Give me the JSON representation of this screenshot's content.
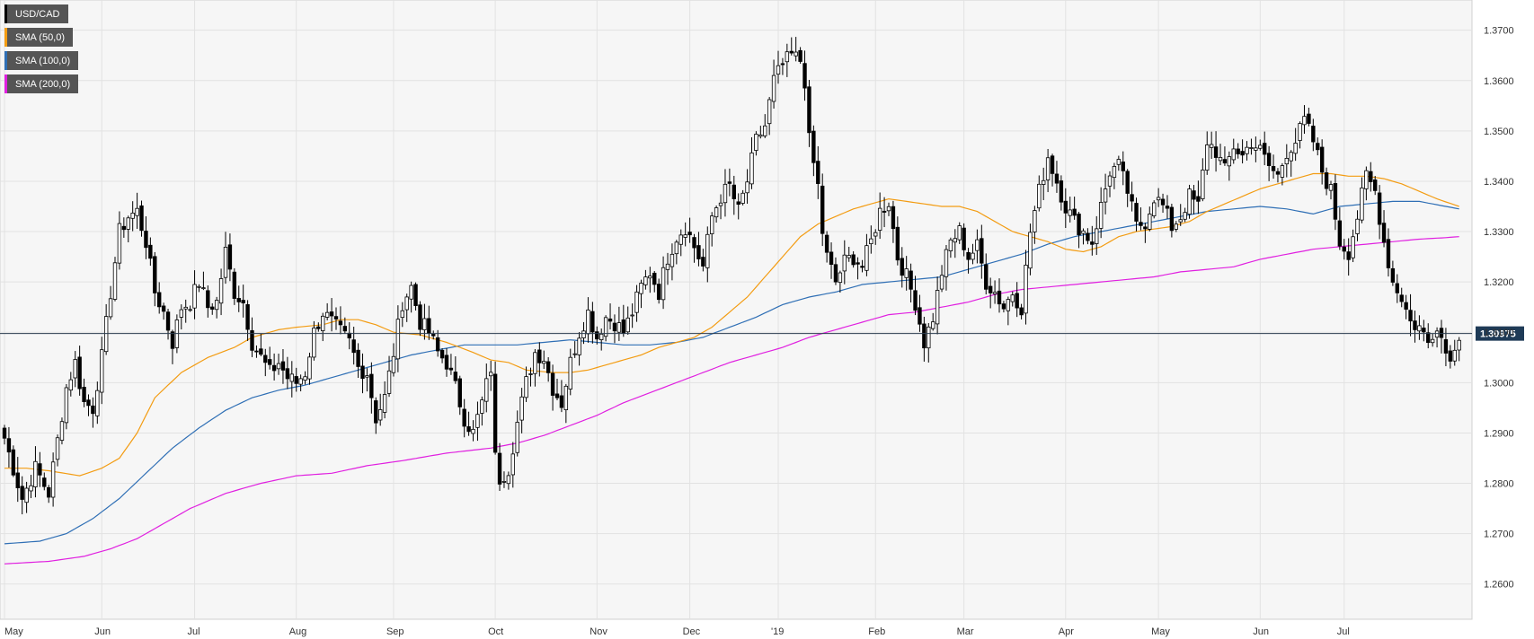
{
  "chart_data": {
    "type": "candlestick",
    "symbol": "USD/CAD",
    "current_price_label": "1.30975",
    "current_price": 1.30975,
    "ylim": [
      1.253,
      1.376
    ],
    "y_ticks": [
      "1.2600",
      "1.2700",
      "1.2800",
      "1.2900",
      "1.3000",
      "1.3100",
      "1.3200",
      "1.3300",
      "1.3400",
      "1.3500",
      "1.3600",
      "1.3700"
    ],
    "x_labels": [
      "May",
      "Jun",
      "Jul",
      "Aug",
      "Sep",
      "Oct",
      "Nov",
      "Dec",
      "'19",
      "Feb",
      "Mar",
      "Apr",
      "May",
      "Jun",
      "Jul"
    ],
    "x_label_bars": [
      0,
      22,
      43,
      66,
      88,
      111,
      134,
      155,
      175,
      197,
      217,
      240,
      261,
      284,
      303
    ],
    "grid": true,
    "legend_position": "top-left",
    "legend": [
      {
        "label": "USD/CAD",
        "color": "#000000"
      },
      {
        "label": "SMA (50,0)",
        "color": "#f39c12"
      },
      {
        "label": "SMA (100,0)",
        "color": "#2f6fb5"
      },
      {
        "label": "SMA (200,0)",
        "color": "#e020e0"
      }
    ],
    "colors": {
      "up": "#ffffff",
      "down": "#000000",
      "wick": "#000000",
      "price_line": "#2c3e50",
      "price_badge": "#1f3b57"
    },
    "close_path": [
      [
        0,
        1.289
      ],
      [
        4,
        1.277
      ],
      [
        7,
        1.283
      ],
      [
        10,
        1.278
      ],
      [
        14,
        1.299
      ],
      [
        16,
        1.304
      ],
      [
        18,
        1.296
      ],
      [
        20,
        1.295
      ],
      [
        22,
        1.305
      ],
      [
        24,
        1.318
      ],
      [
        26,
        1.33
      ],
      [
        28,
        1.333
      ],
      [
        30,
        1.334
      ],
      [
        32,
        1.328
      ],
      [
        34,
        1.318
      ],
      [
        36,
        1.314
      ],
      [
        38,
        1.308
      ],
      [
        40,
        1.315
      ],
      [
        42,
        1.316
      ],
      [
        44,
        1.32
      ],
      [
        46,
        1.315
      ],
      [
        48,
        1.316
      ],
      [
        50,
        1.326
      ],
      [
        52,
        1.318
      ],
      [
        54,
        1.316
      ],
      [
        56,
        1.308
      ],
      [
        58,
        1.305
      ],
      [
        60,
        1.302
      ],
      [
        62,
        1.304
      ],
      [
        64,
        1.301
      ],
      [
        66,
        1.3
      ],
      [
        68,
        1.302
      ],
      [
        70,
        1.31
      ],
      [
        72,
        1.314
      ],
      [
        74,
        1.312
      ],
      [
        76,
        1.31
      ],
      [
        78,
        1.308
      ],
      [
        80,
        1.303
      ],
      [
        82,
        1.302
      ],
      [
        84,
        1.293
      ],
      [
        86,
        1.297
      ],
      [
        88,
        1.306
      ],
      [
        90,
        1.316
      ],
      [
        92,
        1.319
      ],
      [
        94,
        1.312
      ],
      [
        96,
        1.31
      ],
      [
        98,
        1.306
      ],
      [
        100,
        1.304
      ],
      [
        102,
        1.299
      ],
      [
        104,
        1.293
      ],
      [
        106,
        1.29
      ],
      [
        108,
        1.296
      ],
      [
        110,
        1.303
      ],
      [
        111,
        1.285
      ],
      [
        112,
        1.281
      ],
      [
        114,
        1.283
      ],
      [
        116,
        1.292
      ],
      [
        118,
        1.3
      ],
      [
        120,
        1.306
      ],
      [
        122,
        1.305
      ],
      [
        124,
        1.299
      ],
      [
        126,
        1.296
      ],
      [
        128,
        1.304
      ],
      [
        130,
        1.31
      ],
      [
        132,
        1.314
      ],
      [
        134,
        1.309
      ],
      [
        136,
        1.313
      ],
      [
        138,
        1.312
      ],
      [
        140,
        1.31
      ],
      [
        142,
        1.314
      ],
      [
        144,
        1.319
      ],
      [
        146,
        1.322
      ],
      [
        148,
        1.318
      ],
      [
        150,
        1.325
      ],
      [
        152,
        1.329
      ],
      [
        154,
        1.331
      ],
      [
        156,
        1.327
      ],
      [
        158,
        1.323
      ],
      [
        160,
        1.333
      ],
      [
        162,
        1.337
      ],
      [
        164,
        1.339
      ],
      [
        166,
        1.334
      ],
      [
        168,
        1.34
      ],
      [
        170,
        1.348
      ],
      [
        172,
        1.351
      ],
      [
        174,
        1.36
      ],
      [
        176,
        1.363
      ],
      [
        178,
        1.365
      ],
      [
        180,
        1.364
      ],
      [
        181,
        1.36
      ],
      [
        182,
        1.348
      ],
      [
        184,
        1.339
      ],
      [
        185,
        1.33
      ],
      [
        186,
        1.325
      ],
      [
        188,
        1.32
      ],
      [
        190,
        1.324
      ],
      [
        192,
        1.325
      ],
      [
        194,
        1.323
      ],
      [
        196,
        1.328
      ],
      [
        198,
        1.334
      ],
      [
        200,
        1.336
      ],
      [
        202,
        1.325
      ],
      [
        204,
        1.321
      ],
      [
        206,
        1.316
      ],
      [
        208,
        1.308
      ],
      [
        210,
        1.313
      ],
      [
        212,
        1.322
      ],
      [
        214,
        1.328
      ],
      [
        216,
        1.33
      ],
      [
        218,
        1.325
      ],
      [
        220,
        1.327
      ],
      [
        222,
        1.32
      ],
      [
        224,
        1.318
      ],
      [
        226,
        1.315
      ],
      [
        228,
        1.318
      ],
      [
        230,
        1.315
      ],
      [
        232,
        1.33
      ],
      [
        234,
        1.338
      ],
      [
        236,
        1.345
      ],
      [
        238,
        1.34
      ],
      [
        240,
        1.335
      ],
      [
        242,
        1.332
      ],
      [
        244,
        1.33
      ],
      [
        246,
        1.328
      ],
      [
        248,
        1.335
      ],
      [
        250,
        1.342
      ],
      [
        252,
        1.343
      ],
      [
        254,
        1.338
      ],
      [
        256,
        1.331
      ],
      [
        258,
        1.332
      ],
      [
        260,
        1.337
      ],
      [
        262,
        1.335
      ],
      [
        264,
        1.331
      ],
      [
        266,
        1.333
      ],
      [
        268,
        1.337
      ],
      [
        270,
        1.335
      ],
      [
        272,
        1.348
      ],
      [
        274,
        1.346
      ],
      [
        276,
        1.342
      ],
      [
        278,
        1.347
      ],
      [
        280,
        1.345
      ],
      [
        282,
        1.348
      ],
      [
        284,
        1.346
      ],
      [
        286,
        1.343
      ],
      [
        288,
        1.341
      ],
      [
        290,
        1.346
      ],
      [
        292,
        1.348
      ],
      [
        294,
        1.352
      ],
      [
        296,
        1.348
      ],
      [
        298,
        1.342
      ],
      [
        300,
        1.338
      ],
      [
        302,
        1.328
      ],
      [
        304,
        1.326
      ],
      [
        306,
        1.333
      ],
      [
        308,
        1.341
      ],
      [
        310,
        1.338
      ],
      [
        312,
        1.328
      ],
      [
        314,
        1.32
      ],
      [
        316,
        1.317
      ],
      [
        318,
        1.312
      ],
      [
        320,
        1.311
      ],
      [
        322,
        1.308
      ],
      [
        324,
        1.312
      ],
      [
        326,
        1.306
      ],
      [
        328,
        1.306
      ],
      [
        329,
        1.3098
      ]
    ],
    "sma50_path": [
      [
        0,
        1.283
      ],
      [
        5,
        1.283
      ],
      [
        10,
        1.2825
      ],
      [
        17,
        1.2815
      ],
      [
        22,
        1.283
      ],
      [
        26,
        1.285
      ],
      [
        30,
        1.29
      ],
      [
        34,
        1.297
      ],
      [
        40,
        1.302
      ],
      [
        46,
        1.305
      ],
      [
        52,
        1.307
      ],
      [
        56,
        1.309
      ],
      [
        62,
        1.3105
      ],
      [
        66,
        1.311
      ],
      [
        72,
        1.3115
      ],
      [
        76,
        1.3125
      ],
      [
        80,
        1.3125
      ],
      [
        84,
        1.3115
      ],
      [
        88,
        1.31
      ],
      [
        94,
        1.3095
      ],
      [
        100,
        1.308
      ],
      [
        106,
        1.306
      ],
      [
        110,
        1.3045
      ],
      [
        114,
        1.304
      ],
      [
        118,
        1.3025
      ],
      [
        124,
        1.302
      ],
      [
        128,
        1.302
      ],
      [
        132,
        1.3025
      ],
      [
        136,
        1.3035
      ],
      [
        140,
        1.3045
      ],
      [
        144,
        1.3055
      ],
      [
        148,
        1.307
      ],
      [
        152,
        1.308
      ],
      [
        156,
        1.309
      ],
      [
        160,
        1.311
      ],
      [
        164,
        1.314
      ],
      [
        168,
        1.317
      ],
      [
        172,
        1.321
      ],
      [
        176,
        1.325
      ],
      [
        180,
        1.329
      ],
      [
        184,
        1.3315
      ],
      [
        188,
        1.333
      ],
      [
        192,
        1.3345
      ],
      [
        196,
        1.3355
      ],
      [
        200,
        1.3365
      ],
      [
        204,
        1.336
      ],
      [
        208,
        1.3355
      ],
      [
        212,
        1.335
      ],
      [
        216,
        1.335
      ],
      [
        220,
        1.334
      ],
      [
        224,
        1.332
      ],
      [
        228,
        1.33
      ],
      [
        232,
        1.329
      ],
      [
        236,
        1.328
      ],
      [
        240,
        1.3265
      ],
      [
        244,
        1.326
      ],
      [
        248,
        1.327
      ],
      [
        252,
        1.329
      ],
      [
        256,
        1.33
      ],
      [
        260,
        1.3305
      ],
      [
        264,
        1.331
      ],
      [
        268,
        1.332
      ],
      [
        272,
        1.334
      ],
      [
        276,
        1.3355
      ],
      [
        280,
        1.337
      ],
      [
        284,
        1.3385
      ],
      [
        288,
        1.3395
      ],
      [
        292,
        1.3405
      ],
      [
        296,
        1.3415
      ],
      [
        300,
        1.3415
      ],
      [
        304,
        1.341
      ],
      [
        308,
        1.341
      ],
      [
        312,
        1.3405
      ],
      [
        316,
        1.3395
      ],
      [
        320,
        1.338
      ],
      [
        324,
        1.3365
      ],
      [
        329,
        1.335
      ]
    ],
    "sma100_path": [
      [
        0,
        1.268
      ],
      [
        8,
        1.2685
      ],
      [
        14,
        1.27
      ],
      [
        20,
        1.273
      ],
      [
        26,
        1.277
      ],
      [
        32,
        1.282
      ],
      [
        38,
        1.287
      ],
      [
        44,
        1.291
      ],
      [
        50,
        1.2945
      ],
      [
        56,
        1.297
      ],
      [
        62,
        1.2985
      ],
      [
        68,
        1.2995
      ],
      [
        74,
        1.301
      ],
      [
        80,
        1.3025
      ],
      [
        86,
        1.304
      ],
      [
        92,
        1.3055
      ],
      [
        98,
        1.3065
      ],
      [
        104,
        1.3075
      ],
      [
        110,
        1.3075
      ],
      [
        116,
        1.3075
      ],
      [
        122,
        1.308
      ],
      [
        128,
        1.3085
      ],
      [
        134,
        1.308
      ],
      [
        140,
        1.3075
      ],
      [
        146,
        1.3075
      ],
      [
        152,
        1.308
      ],
      [
        158,
        1.309
      ],
      [
        164,
        1.311
      ],
      [
        170,
        1.313
      ],
      [
        176,
        1.3155
      ],
      [
        182,
        1.317
      ],
      [
        188,
        1.318
      ],
      [
        194,
        1.3195
      ],
      [
        200,
        1.32
      ],
      [
        206,
        1.3205
      ],
      [
        212,
        1.321
      ],
      [
        218,
        1.3225
      ],
      [
        224,
        1.324
      ],
      [
        230,
        1.3255
      ],
      [
        236,
        1.3275
      ],
      [
        242,
        1.329
      ],
      [
        248,
        1.33
      ],
      [
        254,
        1.331
      ],
      [
        260,
        1.332
      ],
      [
        266,
        1.333
      ],
      [
        272,
        1.334
      ],
      [
        278,
        1.3345
      ],
      [
        284,
        1.335
      ],
      [
        290,
        1.3345
      ],
      [
        296,
        1.3335
      ],
      [
        302,
        1.335
      ],
      [
        308,
        1.3355
      ],
      [
        314,
        1.336
      ],
      [
        320,
        1.336
      ],
      [
        326,
        1.335
      ],
      [
        329,
        1.3345
      ]
    ],
    "sma200_path": [
      [
        0,
        1.264
      ],
      [
        10,
        1.2645
      ],
      [
        18,
        1.2655
      ],
      [
        24,
        1.267
      ],
      [
        30,
        1.269
      ],
      [
        36,
        1.272
      ],
      [
        42,
        1.275
      ],
      [
        50,
        1.278
      ],
      [
        58,
        1.28
      ],
      [
        66,
        1.2815
      ],
      [
        74,
        1.282
      ],
      [
        82,
        1.2835
      ],
      [
        90,
        1.2845
      ],
      [
        100,
        1.286
      ],
      [
        110,
        1.287
      ],
      [
        116,
        1.288
      ],
      [
        122,
        1.2895
      ],
      [
        128,
        1.2915
      ],
      [
        134,
        1.2935
      ],
      [
        140,
        1.296
      ],
      [
        146,
        1.298
      ],
      [
        152,
        1.3
      ],
      [
        158,
        1.302
      ],
      [
        164,
        1.304
      ],
      [
        170,
        1.3055
      ],
      [
        176,
        1.307
      ],
      [
        182,
        1.309
      ],
      [
        188,
        1.3105
      ],
      [
        194,
        1.312
      ],
      [
        200,
        1.3135
      ],
      [
        206,
        1.314
      ],
      [
        212,
        1.315
      ],
      [
        218,
        1.316
      ],
      [
        224,
        1.3175
      ],
      [
        230,
        1.3185
      ],
      [
        236,
        1.319
      ],
      [
        242,
        1.3195
      ],
      [
        248,
        1.32
      ],
      [
        254,
        1.3205
      ],
      [
        260,
        1.321
      ],
      [
        266,
        1.322
      ],
      [
        272,
        1.3225
      ],
      [
        278,
        1.323
      ],
      [
        284,
        1.3245
      ],
      [
        290,
        1.3255
      ],
      [
        296,
        1.3265
      ],
      [
        302,
        1.327
      ],
      [
        308,
        1.3275
      ],
      [
        314,
        1.328
      ],
      [
        320,
        1.3285
      ],
      [
        326,
        1.3288
      ],
      [
        329,
        1.329
      ]
    ],
    "candle_seed": 7
  }
}
